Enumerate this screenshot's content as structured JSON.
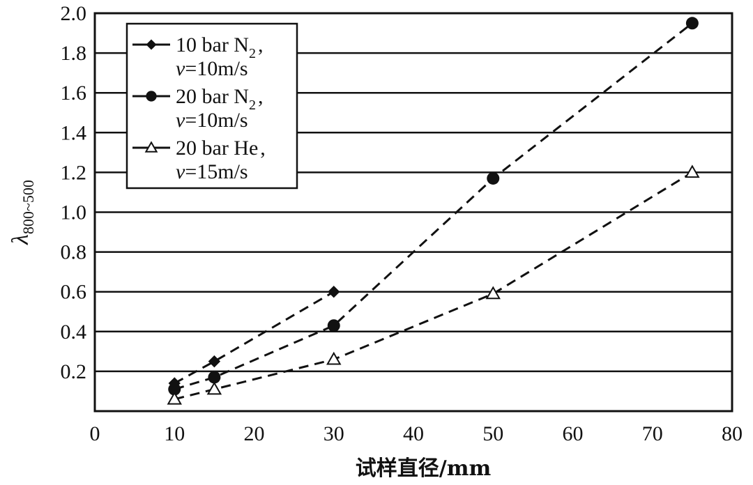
{
  "chart_data": {
    "type": "line",
    "xlabel": "试样直径/mm",
    "ylabel": {
      "main": "λ",
      "sub": "800~500"
    },
    "xlim": [
      0,
      80
    ],
    "ylim": [
      0,
      2.0
    ],
    "x_ticks": [
      "0",
      "10",
      "20",
      "30",
      "40",
      "50",
      "60",
      "70",
      "80"
    ],
    "y_ticks": [
      "0.2",
      "0.4",
      "0.6",
      "0.8",
      "1.0",
      "1.2",
      "1.4",
      "1.6",
      "1.8",
      "2.0"
    ],
    "grid": "horizontal",
    "legend_position": "top-left",
    "series": [
      {
        "name": "10 bar N2, v=10m/s",
        "legend": {
          "line1": "10 bar N",
          "sub": "2",
          "comma": ",",
          "line2_var": "v",
          "line2_rest": "=10m/s"
        },
        "marker": "diamond",
        "x": [
          10,
          15,
          30
        ],
        "y": [
          0.14,
          0.25,
          0.6
        ]
      },
      {
        "name": "20 bar N2, v=10m/s",
        "legend": {
          "line1": "20 bar N",
          "sub": "2",
          "comma": ",",
          "line2_var": "v",
          "line2_rest": "=10m/s"
        },
        "marker": "circle",
        "x": [
          10,
          15,
          30,
          50,
          75
        ],
        "y": [
          0.11,
          0.17,
          0.43,
          1.17,
          1.95
        ]
      },
      {
        "name": "20 bar He, v=15m/s",
        "legend": {
          "line1": "20 bar He",
          "sub": "",
          "comma": ",",
          "line2_var": "v",
          "line2_rest": "=15m/s"
        },
        "marker": "triangle-open",
        "x": [
          10,
          15,
          30,
          50,
          75
        ],
        "y": [
          0.06,
          0.11,
          0.26,
          0.59,
          1.2
        ]
      }
    ],
    "colors": {
      "line": "#111111",
      "grid": "#111111",
      "background": "#ffffff"
    }
  }
}
